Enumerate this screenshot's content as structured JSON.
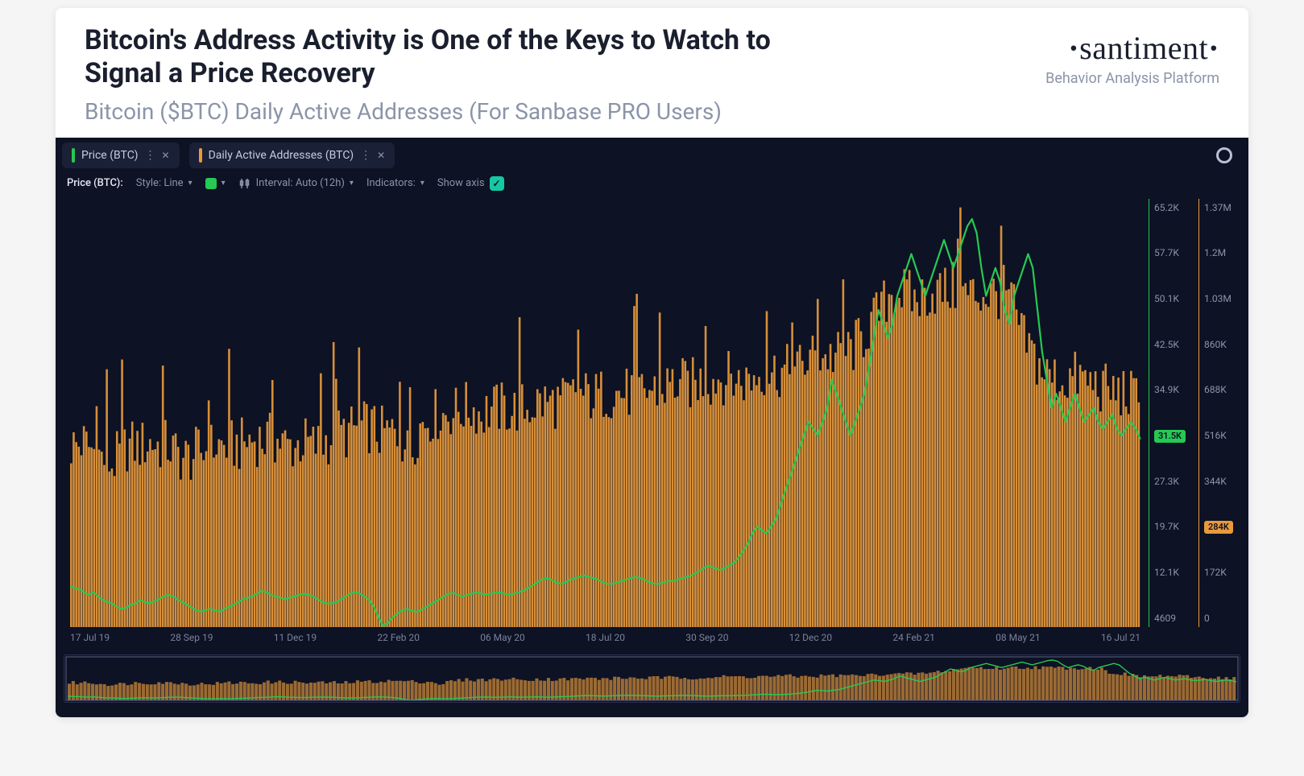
{
  "header": {
    "title": "Bitcoin's Address Activity is One of the Keys to Watch to Signal a Price Recovery",
    "subtitle": "Bitcoin ($BTC) Daily Active Addresses (For Sanbase PRO Users)"
  },
  "brand": {
    "name": "santiment",
    "tagline": "Behavior Analysis Platform",
    "color": "#1a1f2e"
  },
  "tabs": [
    {
      "label": "Price (BTC)",
      "stripe_color": "#26c953"
    },
    {
      "label": "Daily Active Addresses (BTC)",
      "stripe_color": "#e89a3c"
    }
  ],
  "toolbar": {
    "series_label": "Price (BTC):",
    "style_label": "Style: Line",
    "color_swatch": "#26c953",
    "interval_label": "Interval: Auto (12h)",
    "indicators_label": "Indicators:",
    "show_axis_label": "Show axis",
    "show_axis_checked": true
  },
  "chart": {
    "type": "combo-bar-line",
    "background": "#0d1224",
    "bar_color": "#e89a3c",
    "bar_highlight": "#d97d1a",
    "line_color": "#26c953",
    "grid_color": "#1a2036",
    "x_ticks": [
      "17 Jul 19",
      "28 Sep 19",
      "11 Dec 19",
      "22 Feb 20",
      "06 May 20",
      "18 Jul 20",
      "30 Sep 20",
      "12 Dec 20",
      "24 Feb 21",
      "08 May 21",
      "16 Jul 21"
    ],
    "y_left": {
      "ticks": [
        "65.2K",
        "57.7K",
        "50.1K",
        "42.5K",
        "34.9K",
        "27.3K",
        "19.7K",
        "12.1K",
        "4609"
      ],
      "current_badge": "31.5K",
      "badge_bg": "#26c953",
      "axis_color": "#26c953",
      "domain": [
        4609,
        65200
      ]
    },
    "y_right": {
      "ticks": [
        "1.37M",
        "1.2M",
        "1.03M",
        "860K",
        "688K",
        "516K",
        "344K",
        "172K",
        "0"
      ],
      "current_badge": "284K",
      "badge_bg": "#e89a3c",
      "axis_color": "#e89a3c",
      "domain": [
        0,
        1370000
      ]
    },
    "n_bars": 420,
    "daa_base_profile": [
      560,
      560,
      570,
      560,
      550,
      540,
      520,
      510,
      500,
      520,
      540,
      560,
      560,
      560,
      560,
      570,
      570,
      560,
      560,
      560,
      540,
      530,
      520,
      520,
      530,
      540,
      540,
      550,
      560,
      560,
      560,
      560,
      560,
      560,
      570,
      580,
      580,
      580,
      580,
      580,
      580,
      570,
      560,
      560,
      560,
      570,
      570,
      560,
      560,
      570,
      580,
      590,
      600,
      600,
      600,
      610,
      620,
      620,
      620,
      620,
      600,
      600,
      600,
      600,
      590,
      580,
      520,
      580,
      620,
      640,
      650,
      660,
      660,
      660,
      670,
      670,
      680,
      680,
      680,
      680,
      660,
      670,
      680,
      680,
      680,
      680,
      670,
      680,
      680,
      680,
      690,
      700,
      700,
      700,
      700,
      700,
      700,
      710,
      720,
      720,
      720,
      720,
      720,
      720,
      730,
      730,
      730,
      730,
      730,
      730,
      730,
      730,
      730,
      740,
      740,
      740,
      750,
      760,
      760,
      760,
      760,
      760,
      760,
      770,
      770,
      770,
      780,
      780,
      780,
      780,
      770,
      770,
      770,
      780,
      790,
      800,
      800,
      800,
      800,
      800,
      800,
      800,
      810,
      820,
      840,
      850,
      850,
      850,
      850,
      850,
      850,
      860,
      870,
      880,
      900,
      920,
      950,
      970,
      1000,
      1020,
      1060,
      1060,
      1060,
      1050,
      1040,
      1030,
      1040,
      1050,
      1060,
      1060,
      1060,
      1060,
      1070,
      1060,
      1060,
      1050,
      1050,
      1050,
      1050,
      1050,
      1050,
      1050,
      1060,
      1040,
      1020,
      950,
      900,
      880,
      850,
      820,
      800,
      780,
      780,
      770,
      770,
      780,
      780,
      780,
      770,
      760,
      760,
      750,
      740,
      740,
      730,
      730,
      730,
      720,
      710,
      700
    ],
    "daa_noise_amp": 180,
    "price_points": [
      10.5,
      10.2,
      10.0,
      9.6,
      9.2,
      9.6,
      9.0,
      8.5,
      8.2,
      8.0,
      7.5,
      7.2,
      7.4,
      7.8,
      8.0,
      8.5,
      8.2,
      8.0,
      8.3,
      8.6,
      9.0,
      9.2,
      9.0,
      8.6,
      8.2,
      7.8,
      7.4,
      7.0,
      6.8,
      7.0,
      7.2,
      7.0,
      6.8,
      7.2,
      7.5,
      7.8,
      8.2,
      8.6,
      8.8,
      9.0,
      9.4,
      9.8,
      9.6,
      9.2,
      9.0,
      8.8,
      8.6,
      8.8,
      9.0,
      9.2,
      9.4,
      9.2,
      9.0,
      8.6,
      8.2,
      8.0,
      8.0,
      8.2,
      8.6,
      9.0,
      9.4,
      9.6,
      9.4,
      9.0,
      8.5,
      7.5,
      6.0,
      4.8,
      5.2,
      6.0,
      6.5,
      7.0,
      7.2,
      7.0,
      6.8,
      7.0,
      7.4,
      7.8,
      8.2,
      8.6,
      9.0,
      9.4,
      9.5,
      9.2,
      9.0,
      9.2,
      9.4,
      9.6,
      9.4,
      9.2,
      9.4,
      9.5,
      9.6,
      9.4,
      9.2,
      9.4,
      9.6,
      9.8,
      10.2,
      10.6,
      11.0,
      11.4,
      11.6,
      11.4,
      11.0,
      10.8,
      11.0,
      11.4,
      11.6,
      11.8,
      12.0,
      11.8,
      11.6,
      11.4,
      11.0,
      10.8,
      10.8,
      11.0,
      11.2,
      11.4,
      11.6,
      11.8,
      11.6,
      11.4,
      11.0,
      10.8,
      10.8,
      11.0,
      11.2,
      11.2,
      11.4,
      11.6,
      11.8,
      12.0,
      12.4,
      12.8,
      13.2,
      13.4,
      13.0,
      12.8,
      13.0,
      13.4,
      13.8,
      14.5,
      15.5,
      16.5,
      18.0,
      19.0,
      18.5,
      18.0,
      19.0,
      20.0,
      22.0,
      24.0,
      26.0,
      28.0,
      30.0,
      32.0,
      34.0,
      33.0,
      32.0,
      34.0,
      36.0,
      40.0,
      38.0,
      36.0,
      34.0,
      32.0,
      34.0,
      36.0,
      38.0,
      42.0,
      46.0,
      50.0,
      48.0,
      46.0,
      48.0,
      52.0,
      54.0,
      56.0,
      58.0,
      56.0,
      54.0,
      52.0,
      54.0,
      56.0,
      58.0,
      60.0,
      58.0,
      56.0,
      58.0,
      60.0,
      62.0,
      63.0,
      61.0,
      56.0,
      52.0,
      54.0,
      56.0,
      54.0,
      50.0,
      48.0,
      52.0,
      54.0,
      56.0,
      58.0,
      56.0,
      50.0,
      44.0,
      40.0,
      36.0,
      38.0,
      36.0,
      34.0,
      36.0,
      38.0,
      36.0,
      34.0,
      35.0,
      36.0,
      34.0,
      33.0,
      34.0,
      35.0,
      33.0,
      32.0,
      33.0,
      34.0,
      33.0,
      31.5
    ],
    "price_domain": [
      4.609,
      65.2
    ]
  }
}
